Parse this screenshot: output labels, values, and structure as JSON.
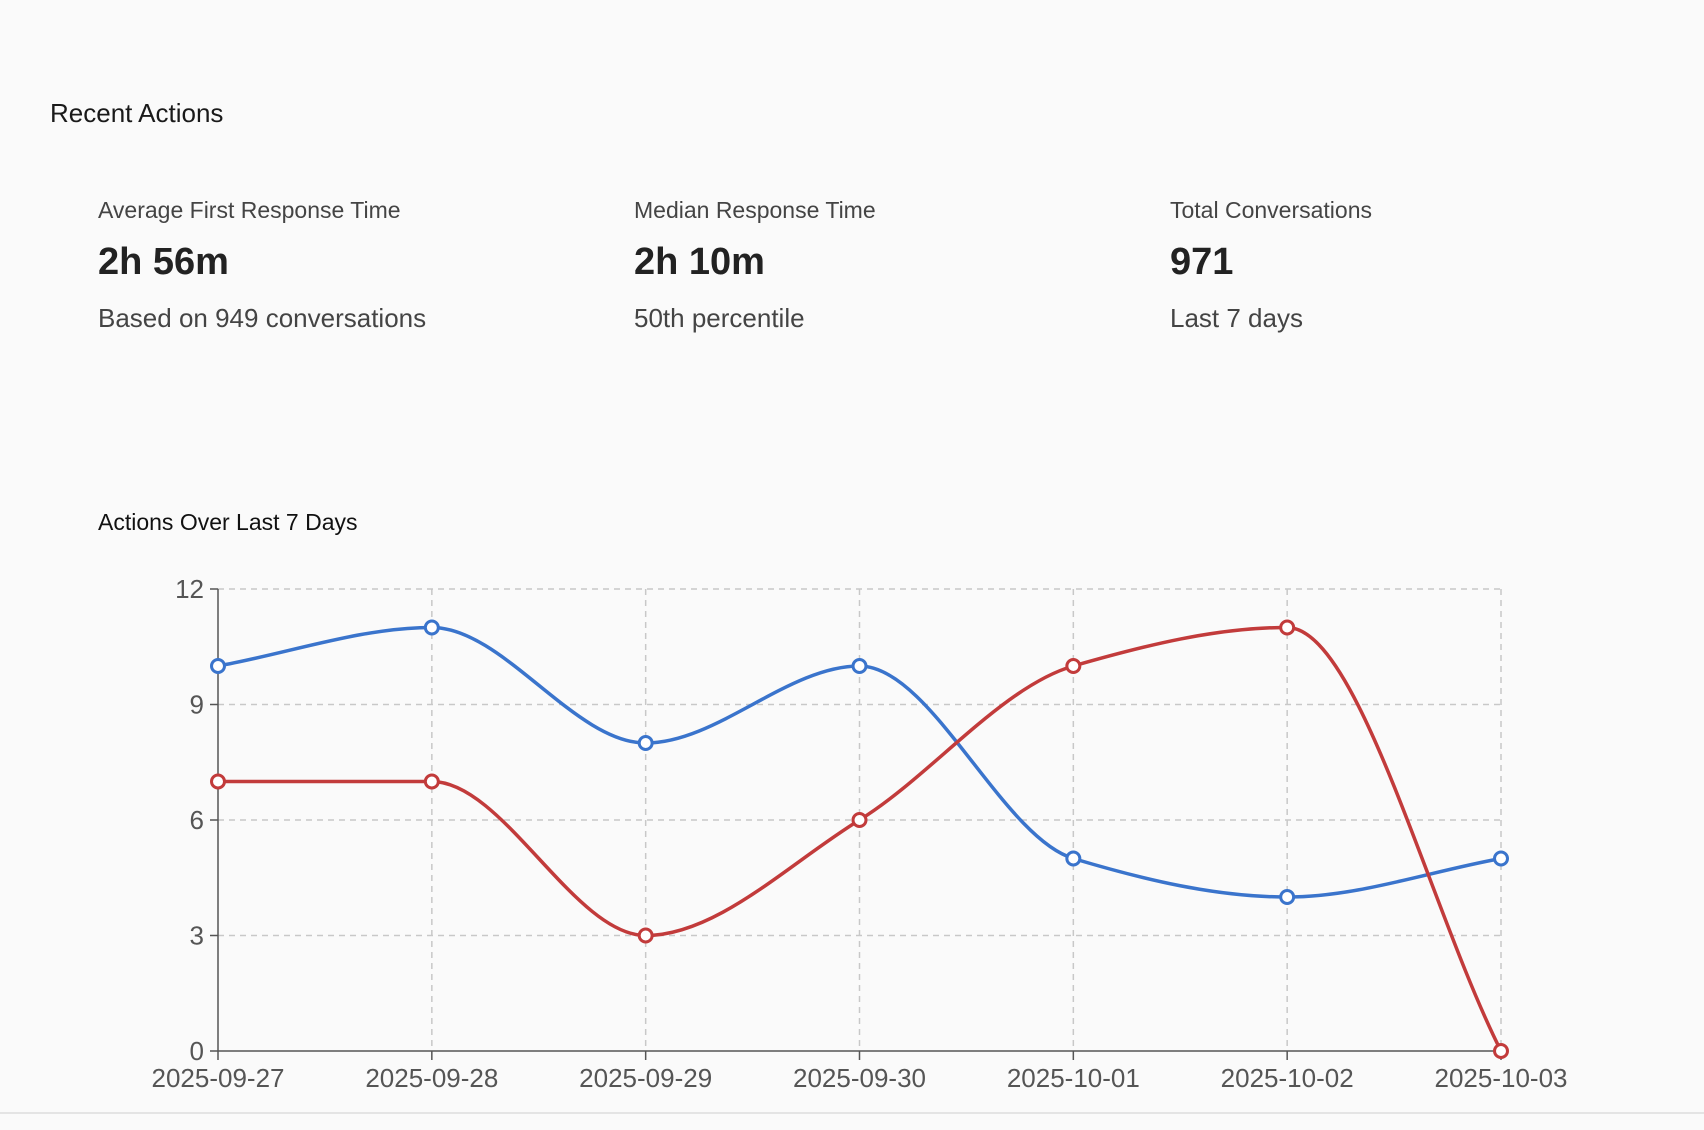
{
  "section": {
    "title": "Recent Actions"
  },
  "stats": [
    {
      "label": "Average First Response Time",
      "value": "2h 56m",
      "sub": "Based on 949 conversations"
    },
    {
      "label": "Median Response Time",
      "value": "2h 10m",
      "sub": "50th percentile"
    },
    {
      "label": "Total Conversations",
      "value": "971",
      "sub": "Last 7 days"
    }
  ],
  "chart_data": {
    "type": "line",
    "title": "Actions Over Last 7 Days",
    "xlabel": "",
    "ylabel": "",
    "x": [
      "2025-09-27",
      "2025-09-28",
      "2025-09-29",
      "2025-09-30",
      "2025-10-01",
      "2025-10-02",
      "2025-10-03"
    ],
    "ylim": [
      0,
      12
    ],
    "yticks": [
      0,
      3,
      6,
      9,
      12
    ],
    "grid": true,
    "legend": "none",
    "series": [
      {
        "color": "#3a74cc",
        "values": [
          10,
          11,
          8,
          10,
          5,
          4,
          5
        ]
      },
      {
        "color": "#c23b3b",
        "values": [
          7,
          7,
          3,
          6,
          10,
          11,
          0
        ]
      }
    ]
  }
}
